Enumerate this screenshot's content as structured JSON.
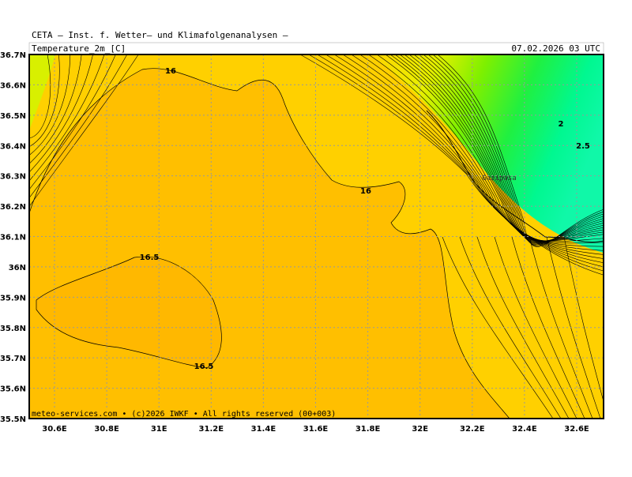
{
  "header": {
    "title": "CETA — Inst. f. Wetter— und Klimafolgenanalysen —",
    "variable": "Temperature_2m_[C]",
    "valid": "07.02.2026 03 UTC"
  },
  "map": {
    "lat_labels": [
      "36.7N",
      "36.6N",
      "36.5N",
      "36.4N",
      "36.3N",
      "36.2N",
      "36.1N",
      "36N",
      "35.9N",
      "35.8N",
      "35.7N",
      "35.6N",
      "35.5N"
    ],
    "lon_labels": [
      "30.6E",
      "30.8E",
      "31E",
      "31.2E",
      "31.4E",
      "31.6E",
      "31.8E",
      "32E",
      "32.2E",
      "32.4E",
      "32.6E"
    ],
    "contour_labels": [
      "16",
      "16",
      "16.5",
      "16.5",
      "2",
      "2.5"
    ],
    "place": "Gazipasa",
    "footer": "meteo-services.com • (c)2026 IWKF • All rights reserved (00+003)"
  }
}
